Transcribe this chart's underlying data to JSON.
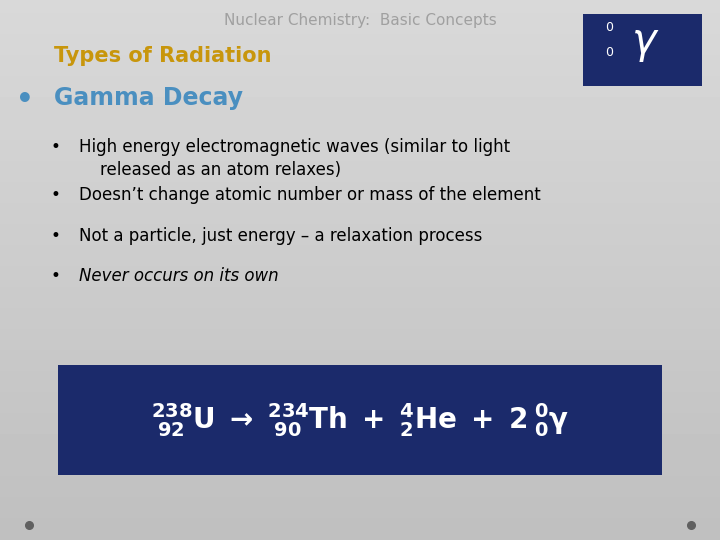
{
  "title": "Nuclear Chemistry:  Basic Concepts",
  "subtitle": "Types of Radiation",
  "subtitle_color": "#C8960C",
  "main_bullet": "Gamma Decay",
  "main_bullet_color": "#4A8FC0",
  "sub_bullets": [
    "High energy electromagnetic waves (similar to light\n    released as an atom relaxes)",
    "Doesn’t change atomic number or mass of the element",
    "Not a particle, just energy – a relaxation process",
    "Never occurs on its own"
  ],
  "sub_bullet_italic": [
    false,
    false,
    false,
    true
  ],
  "equation_bg": "#1B2A6B",
  "equation_text_color": "#ffffff",
  "gamma_box_bg": "#1B2A6B",
  "gamma_box_text": "#ffffff",
  "title_color": "#A0A0A0",
  "bg_top": "#E0E0E0",
  "bg_bottom": "#BEBEBE",
  "title_fontsize": 11,
  "subtitle_fontsize": 15,
  "main_bullet_fontsize": 17,
  "sub_bullet_fontsize": 12,
  "equation_fontsize": 20
}
